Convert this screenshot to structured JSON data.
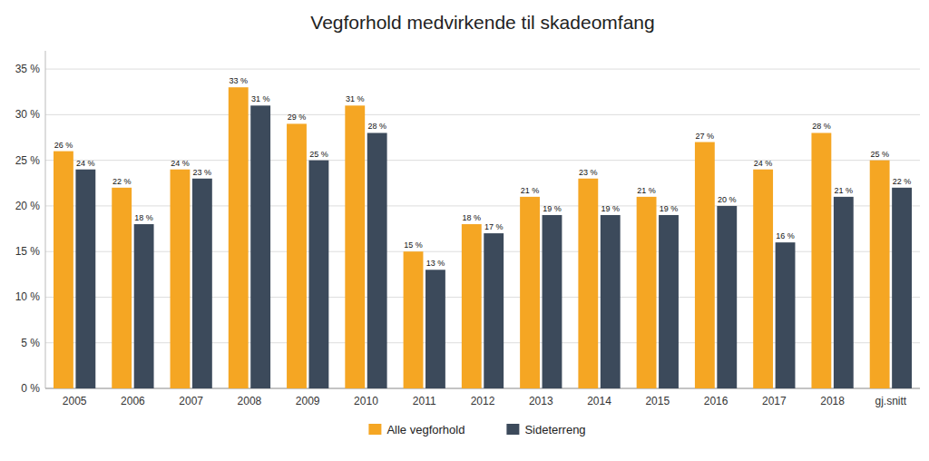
{
  "chart_data": {
    "type": "bar",
    "title": "Vegforhold medvirkende til skadeomfang",
    "categories": [
      "2005",
      "2006",
      "2007",
      "2008",
      "2009",
      "2010",
      "2011",
      "2012",
      "2013",
      "2014",
      "2015",
      "2016",
      "2017",
      "2018",
      "gj.snitt"
    ],
    "series": [
      {
        "name": "Alle vegforhold",
        "color": "#F5A623",
        "values": [
          26,
          22,
          24,
          33,
          29,
          31,
          15,
          18,
          21,
          23,
          21,
          27,
          24,
          28,
          25
        ],
        "value_labels": [
          "26 %",
          "22 %",
          "24 %",
          "33 %",
          "29 %",
          "31 %",
          "15 %",
          "18 %",
          "21 %",
          "23 %",
          "21 %",
          "27 %",
          "24 %",
          "28 %",
          "25 %"
        ]
      },
      {
        "name": "Sideterreng",
        "color": "#3C4A5B",
        "values": [
          24,
          18,
          23,
          31,
          25,
          28,
          13,
          17,
          19,
          19,
          19,
          20,
          16,
          21,
          22
        ],
        "value_labels": [
          "24 %",
          "18 %",
          "23 %",
          "31 %",
          "25 %",
          "28 %",
          "13 %",
          "17 %",
          "19 %",
          "19 %",
          "19 %",
          "20 %",
          "16 %",
          "21 %",
          "22 %"
        ]
      }
    ],
    "ylim": [
      0,
      37
    ],
    "yticks": [
      {
        "value": 0,
        "label": "0 %"
      },
      {
        "value": 5,
        "label": "5 %"
      },
      {
        "value": 10,
        "label": "10 %"
      },
      {
        "value": 15,
        "label": "15 %"
      },
      {
        "value": 20,
        "label": "20 %"
      },
      {
        "value": 25,
        "label": "25 %"
      },
      {
        "value": 30,
        "label": "30 %"
      },
      {
        "value": 35,
        "label": "35 %"
      }
    ],
    "grid": true,
    "legend": "bottom",
    "data_labels": true
  }
}
